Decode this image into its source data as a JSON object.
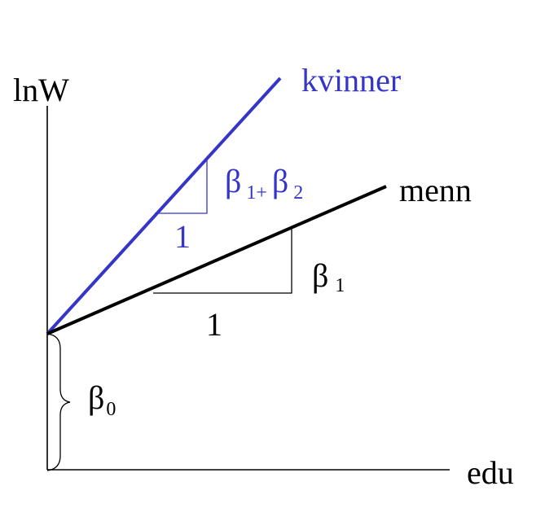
{
  "axes": {
    "y_label": "lnW",
    "x_label": "edu"
  },
  "lines": {
    "women": {
      "label": "kvinner",
      "color": "#3535c8"
    },
    "men": {
      "label": "menn",
      "color": "#000000"
    }
  },
  "annotations": {
    "women_slope": {
      "beta": "β",
      "sub1": "1+",
      "beta2": "β",
      "sub2": "2",
      "run": "1"
    },
    "men_slope": {
      "beta": "β",
      "sub": "1",
      "run": "1"
    },
    "intercept": {
      "beta": "β",
      "sub": "0"
    }
  }
}
